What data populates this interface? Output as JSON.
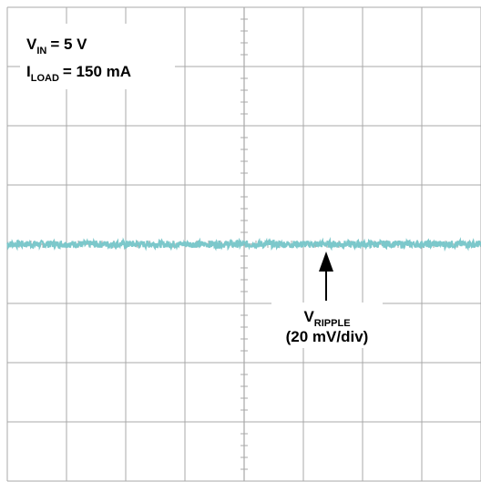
{
  "chart_data": {
    "type": "line",
    "title": "",
    "xlabel": "",
    "ylabel": "",
    "grid": true,
    "divisions": {
      "x": 8,
      "y": 8
    },
    "ylim": [
      -80,
      80
    ],
    "series": [
      {
        "values": [
          0,
          0,
          0,
          0,
          0,
          0,
          0,
          0,
          0
        ],
        "noise_mV": 1.2
      }
    ],
    "conditions": {
      "vin": {
        "main": "V",
        "sub": "IN",
        "value": "= 5 V"
      },
      "iload": {
        "main": "I",
        "sub": "LOAD",
        "value": "= 150 mA"
      }
    },
    "annotation": {
      "label_main": "V",
      "label_sub": "RIPPLE",
      "scale": "(20 mV/div)"
    }
  },
  "colors": {
    "trace": "#7cc8cb",
    "grid": "#a8a8a8",
    "arrow": "#000000"
  }
}
